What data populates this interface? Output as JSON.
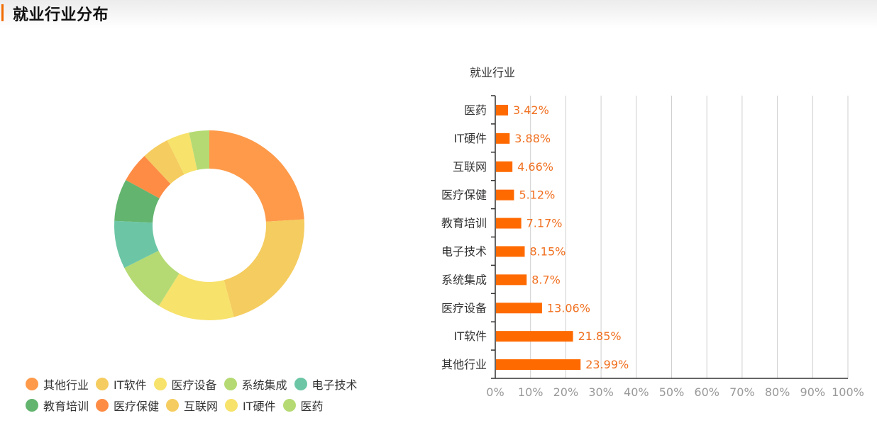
{
  "header": {
    "title": "就业行业分布",
    "accent_color": "#f06b00"
  },
  "donut": {
    "segments": [
      {
        "label": "其他行业",
        "value": 23.99,
        "color": "#fe9a4a"
      },
      {
        "label": "IT软件",
        "value": 21.85,
        "color": "#f5cc5f"
      },
      {
        "label": "医疗设备",
        "value": 13.06,
        "color": "#f7e26b"
      },
      {
        "label": "系统集成",
        "value": 8.7,
        "color": "#b5da73"
      },
      {
        "label": "电子技术",
        "value": 8.15,
        "color": "#6cc6a6"
      },
      {
        "label": "教育培训",
        "value": 7.17,
        "color": "#63b46e"
      },
      {
        "label": "医疗保健",
        "value": 5.12,
        "color": "#fe8c45"
      },
      {
        "label": "互联网",
        "value": 4.66,
        "color": "#f5cc5f"
      },
      {
        "label": "IT硬件",
        "value": 3.88,
        "color": "#f7e26b"
      },
      {
        "label": "医药",
        "value": 3.42,
        "color": "#b5da73"
      }
    ]
  },
  "legend": {
    "rows": [
      [
        {
          "label": "其他行业",
          "color": "#fe9a4a"
        },
        {
          "label": "IT软件",
          "color": "#f5cc5f"
        },
        {
          "label": "医疗设备",
          "color": "#f7e26b"
        },
        {
          "label": "系统集成",
          "color": "#b5da73"
        },
        {
          "label": "电子技术",
          "color": "#6cc6a6"
        }
      ],
      [
        {
          "label": "教育培训",
          "color": "#63b46e"
        },
        {
          "label": "医疗保健",
          "color": "#fe8c45"
        },
        {
          "label": "互联网",
          "color": "#f5cc5f"
        },
        {
          "label": "IT硬件",
          "color": "#f7e26b"
        },
        {
          "label": "医药",
          "color": "#b5da73"
        }
      ]
    ]
  },
  "bar_chart": {
    "ylabel": "就业行业",
    "bar_color": "#ff6a00",
    "label_color": "#f07020",
    "x_ticks": [
      "0%",
      "10%",
      "20%",
      "30%",
      "40%",
      "50%",
      "60%",
      "70%",
      "80%",
      "90%",
      "100%"
    ]
  },
  "chart_data": [
    {
      "type": "pie",
      "title": "就业行业分布",
      "donut": true,
      "categories": [
        "其他行业",
        "IT软件",
        "医疗设备",
        "系统集成",
        "电子技术",
        "教育培训",
        "医疗保健",
        "互联网",
        "IT硬件",
        "医药"
      ],
      "values": [
        23.99,
        21.85,
        13.06,
        8.7,
        8.15,
        7.17,
        5.12,
        4.66,
        3.88,
        3.42
      ],
      "legend_position": "bottom"
    },
    {
      "type": "bar",
      "orientation": "horizontal",
      "title": "",
      "ylabel": "就业行业",
      "xlabel": "",
      "categories": [
        "医药",
        "IT硬件",
        "互联网",
        "医疗保健",
        "教育培训",
        "电子技术",
        "系统集成",
        "医疗设备",
        "IT软件",
        "其他行业"
      ],
      "values": [
        3.42,
        3.88,
        4.66,
        5.12,
        7.17,
        8.15,
        8.7,
        13.06,
        21.85,
        23.99
      ],
      "data_labels": [
        "3.42%",
        "3.88%",
        "4.66%",
        "5.12%",
        "7.17%",
        "8.15%",
        "8.7%",
        "13.06%",
        "21.85%",
        "23.99%"
      ],
      "xlim": [
        0,
        100
      ],
      "x_ticks": [
        "0%",
        "10%",
        "20%",
        "30%",
        "40%",
        "50%",
        "60%",
        "70%",
        "80%",
        "90%",
        "100%"
      ],
      "grid": "vertical"
    }
  ]
}
